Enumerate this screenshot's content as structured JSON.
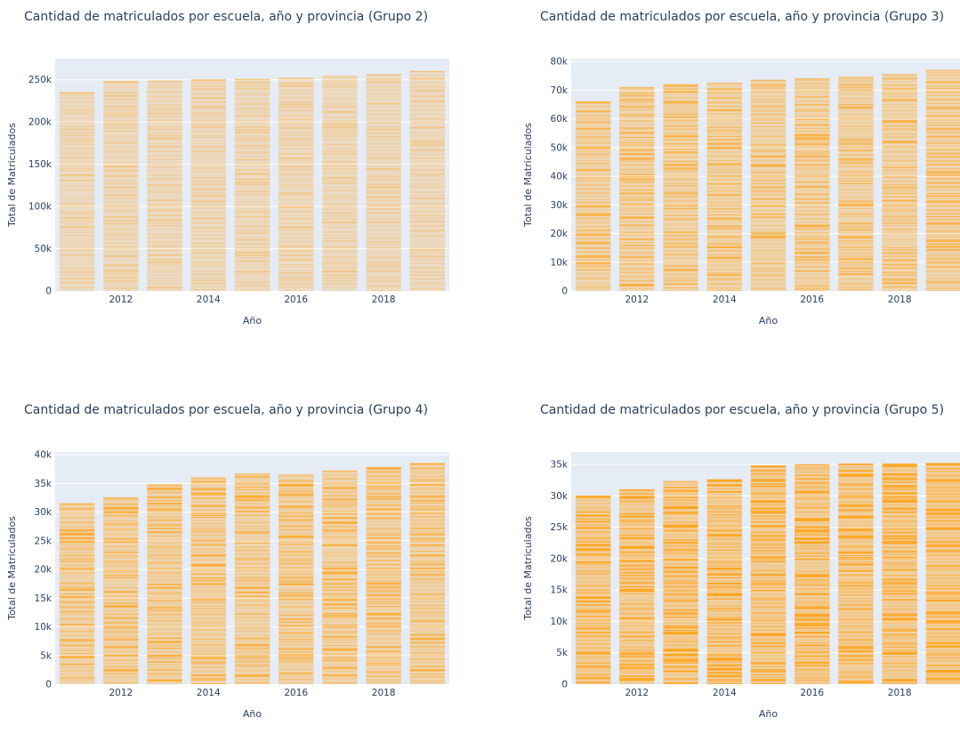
{
  "colors": {
    "plot_bg": "#e5ecf6",
    "grid": "#ffffff",
    "bar": "#ffa726",
    "text": "#2a3f5f"
  },
  "chart_data": [
    {
      "type": "bar",
      "stacked": true,
      "title": "Cantidad de matriculados por escuela, año y provincia (Grupo 2)",
      "xlabel": "Año",
      "ylabel": "Total de Matriculados",
      "x": [
        2011,
        2012,
        2013,
        2014,
        2015,
        2016,
        2017,
        2018,
        2019
      ],
      "values": [
        235000,
        248000,
        248500,
        250000,
        250500,
        252000,
        254000,
        256000,
        260000
      ],
      "xticks": [
        "2012",
        "2014",
        "2016",
        "2018"
      ],
      "ylim": [
        0,
        275000
      ],
      "yticks": [
        0,
        50000,
        100000,
        150000,
        200000,
        250000
      ],
      "ytick_labels": [
        "0",
        "50k",
        "100k",
        "150k",
        "200k",
        "250k"
      ],
      "grid": true
    },
    {
      "type": "bar",
      "stacked": true,
      "title": "Cantidad de matriculados por escuela, año y provincia (Grupo 3)",
      "xlabel": "Año",
      "ylabel": "Total de Matriculados",
      "x": [
        2011,
        2012,
        2013,
        2014,
        2015,
        2016,
        2017,
        2018,
        2019
      ],
      "values": [
        66000,
        71000,
        72000,
        72500,
        73500,
        74000,
        74500,
        75500,
        77000
      ],
      "xticks": [
        "2012",
        "2014",
        "2016",
        "2018"
      ],
      "ylim": [
        0,
        81000
      ],
      "yticks": [
        0,
        10000,
        20000,
        30000,
        40000,
        50000,
        60000,
        70000,
        80000
      ],
      "ytick_labels": [
        "0",
        "10k",
        "20k",
        "30k",
        "40k",
        "50k",
        "60k",
        "70k",
        "80k"
      ],
      "grid": true
    },
    {
      "type": "bar",
      "stacked": true,
      "title": "Cantidad de matriculados por escuela, año y provincia (Grupo 4)",
      "xlabel": "Año",
      "ylabel": "Total de Matriculados",
      "x": [
        2011,
        2012,
        2013,
        2014,
        2015,
        2016,
        2017,
        2018,
        2019
      ],
      "values": [
        31500,
        32500,
        34800,
        36000,
        36700,
        36500,
        37200,
        37800,
        38500
      ],
      "xticks": [
        "2012",
        "2014",
        "2016",
        "2018"
      ],
      "ylim": [
        0,
        40500
      ],
      "yticks": [
        0,
        5000,
        10000,
        15000,
        20000,
        25000,
        30000,
        35000,
        40000
      ],
      "ytick_labels": [
        "0",
        "5k",
        "10k",
        "15k",
        "20k",
        "25k",
        "30k",
        "35k",
        "40k"
      ],
      "grid": true
    },
    {
      "type": "bar",
      "stacked": true,
      "title": "Cantidad de matriculados por escuela, año y provincia (Grupo 5)",
      "xlabel": "Año",
      "ylabel": "Total de Matriculados",
      "x": [
        2011,
        2012,
        2013,
        2014,
        2015,
        2016,
        2017,
        2018,
        2019
      ],
      "values": [
        30000,
        31000,
        32300,
        32600,
        34800,
        35000,
        35100,
        35100,
        35200
      ],
      "xticks": [
        "2012",
        "2014",
        "2016",
        "2018"
      ],
      "ylim": [
        0,
        37000
      ],
      "yticks": [
        0,
        5000,
        10000,
        15000,
        20000,
        25000,
        30000,
        35000
      ],
      "ytick_labels": [
        "0",
        "5k",
        "10k",
        "15k",
        "20k",
        "25k",
        "30k",
        "35k"
      ],
      "grid": true
    }
  ]
}
